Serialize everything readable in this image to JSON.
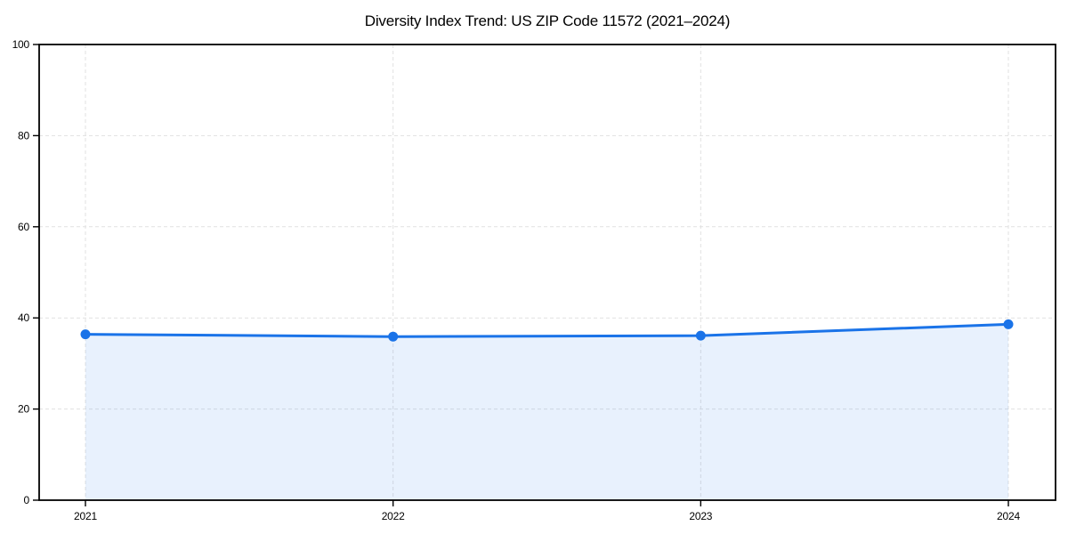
{
  "figure": {
    "background": "#ffffff"
  },
  "chart_data": {
    "type": "line",
    "title": "Diversity Index Trend: US ZIP Code 11572 (2021–2024)",
    "categories": [
      "2021",
      "2022",
      "2023",
      "2024"
    ],
    "series": [
      {
        "name": "Diversity Index",
        "values": [
          36.4,
          35.9,
          36.1,
          38.6
        ]
      }
    ],
    "xlabel": "",
    "ylabel": "",
    "ylim": [
      0,
      100
    ],
    "yticks": [
      0,
      20,
      40,
      60,
      80,
      100
    ],
    "grid": true,
    "grid_line_style": "dashed",
    "legend_position": "none",
    "marker_style": "circle",
    "area_fill_enabled": true,
    "colors": {
      "line": "#1a73e8",
      "marker": "#1a73e8",
      "area_fill": "#1a73e8",
      "area_fill_opacity": 0.1,
      "grid": "#e1e1e1",
      "spine": "#000000",
      "text": "#000000"
    }
  }
}
